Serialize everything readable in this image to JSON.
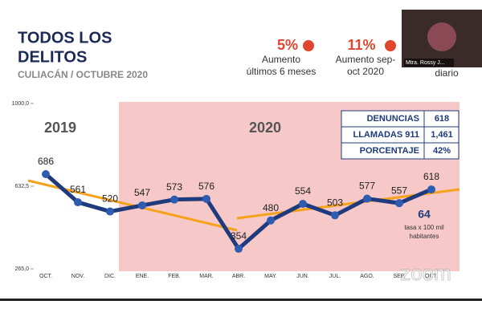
{
  "header": {
    "title_lines": [
      "TODOS LOS",
      "DELITOS"
    ],
    "subtitle": "CULIACÁN / OCTUBRE 2020"
  },
  "stats": [
    {
      "value": "5%",
      "lines": [
        "Aumento",
        "últimos 6 meses"
      ]
    },
    {
      "value": "11%",
      "lines": [
        "Aumento sep-",
        "oct 2020"
      ]
    },
    {
      "lines": [
        "diario"
      ]
    }
  ],
  "video": {
    "name": "Mtra. Rossy J..."
  },
  "periods": [
    "2019",
    "2020"
  ],
  "table": {
    "rows": [
      [
        "DENUNCIAS",
        "618"
      ],
      [
        "LLAMADAS 911",
        "1,461"
      ],
      [
        "PORCENTAJE",
        "42%"
      ]
    ]
  },
  "rate": {
    "value": "64",
    "lines": [
      "tasa x 100 mil",
      "habitantes"
    ]
  },
  "watermark": "zoom",
  "chart_data": {
    "type": "line",
    "categories": [
      "OCT.",
      "NOV.",
      "DIC.",
      "ENE.",
      "FEB.",
      "MAR.",
      "ABR.",
      "MAY.",
      "JUN.",
      "JUL.",
      "AGO.",
      "SEP.",
      "OCT."
    ],
    "values": [
      686,
      561,
      520,
      547,
      573,
      576,
      354,
      480,
      554,
      503,
      577,
      557,
      618
    ],
    "color": "#1f3b7d",
    "ylim": [
      265,
      1000
    ],
    "yticks": [
      {
        "value": 1000,
        "label": "1000,0"
      },
      {
        "value": 632.5,
        "label": "632,5"
      },
      {
        "value": 265,
        "label": "265,0"
      }
    ]
  }
}
